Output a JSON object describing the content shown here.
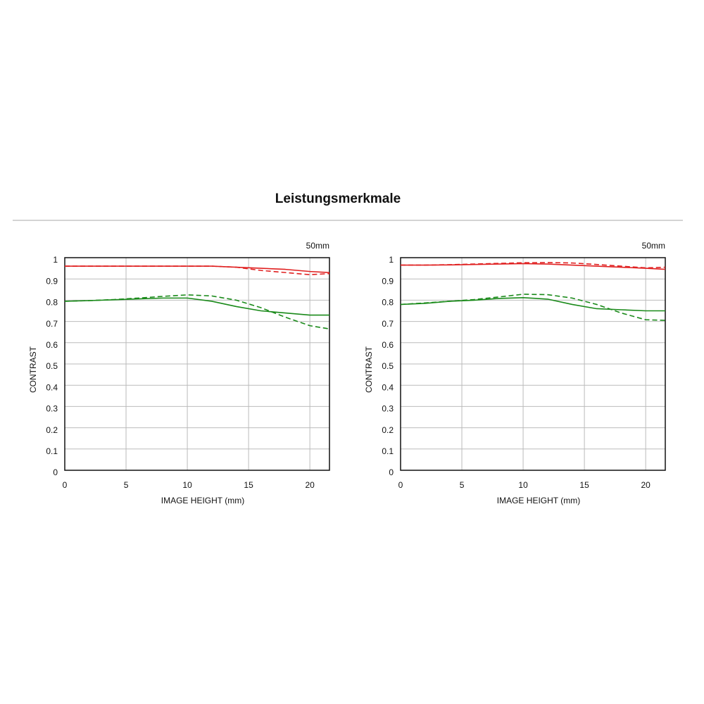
{
  "title": "Leistungsmerkmale",
  "chart_data": [
    {
      "type": "line",
      "subtitle": "50mm",
      "xlabel": "IMAGE HEIGHT (mm)",
      "ylabel": "CONTRAST",
      "x": [
        0,
        2,
        4,
        6,
        8,
        10,
        12,
        14,
        16,
        18,
        20,
        21.6
      ],
      "series": [
        {
          "color": "#e02020",
          "dashed": false,
          "values": [
            0.96,
            0.96,
            0.96,
            0.96,
            0.96,
            0.96,
            0.96,
            0.955,
            0.95,
            0.945,
            0.935,
            0.93
          ]
        },
        {
          "color": "#e02020",
          "dashed": true,
          "values": [
            0.96,
            0.96,
            0.96,
            0.96,
            0.96,
            0.96,
            0.96,
            0.955,
            0.94,
            0.93,
            0.92,
            0.925
          ]
        },
        {
          "color": "#1a8a1a",
          "dashed": false,
          "values": [
            0.795,
            0.798,
            0.802,
            0.806,
            0.81,
            0.81,
            0.795,
            0.77,
            0.75,
            0.74,
            0.73,
            0.73
          ]
        },
        {
          "color": "#1a8a1a",
          "dashed": true,
          "values": [
            0.795,
            0.798,
            0.803,
            0.81,
            0.818,
            0.825,
            0.82,
            0.8,
            0.765,
            0.72,
            0.68,
            0.665
          ]
        }
      ],
      "xlim": [
        0,
        21.6
      ],
      "ylim": [
        0,
        1
      ],
      "xticks": [
        0,
        5,
        10,
        15,
        20
      ],
      "yticks": [
        0,
        0.1,
        0.2,
        0.3,
        0.4,
        0.5,
        0.6,
        0.7,
        0.8,
        0.9,
        1
      ],
      "grid": true
    },
    {
      "type": "line",
      "subtitle": "50mm",
      "xlabel": "IMAGE HEIGHT (mm)",
      "ylabel": "CONTRAST",
      "x": [
        0,
        2,
        4,
        6,
        8,
        10,
        12,
        14,
        16,
        18,
        20,
        21.6
      ],
      "series": [
        {
          "color": "#e02020",
          "dashed": false,
          "values": [
            0.965,
            0.965,
            0.966,
            0.968,
            0.97,
            0.972,
            0.97,
            0.965,
            0.96,
            0.955,
            0.95,
            0.945
          ]
        },
        {
          "color": "#e02020",
          "dashed": true,
          "values": [
            0.965,
            0.965,
            0.967,
            0.97,
            0.973,
            0.976,
            0.977,
            0.975,
            0.968,
            0.96,
            0.952,
            0.955
          ]
        },
        {
          "color": "#1a8a1a",
          "dashed": false,
          "values": [
            0.78,
            0.785,
            0.795,
            0.8,
            0.808,
            0.812,
            0.805,
            0.78,
            0.76,
            0.755,
            0.75,
            0.75
          ]
        },
        {
          "color": "#1a8a1a",
          "dashed": true,
          "values": [
            0.78,
            0.787,
            0.795,
            0.803,
            0.815,
            0.828,
            0.826,
            0.81,
            0.78,
            0.74,
            0.708,
            0.705
          ]
        }
      ],
      "xlim": [
        0,
        21.6
      ],
      "ylim": [
        0,
        1
      ],
      "xticks": [
        0,
        5,
        10,
        15,
        20
      ],
      "yticks": [
        0,
        0.1,
        0.2,
        0.3,
        0.4,
        0.5,
        0.6,
        0.7,
        0.8,
        0.9,
        1
      ],
      "grid": true
    }
  ]
}
